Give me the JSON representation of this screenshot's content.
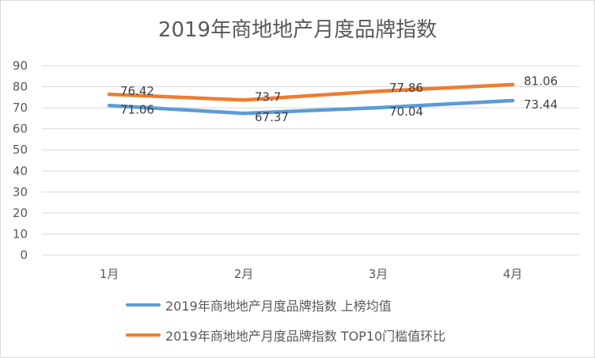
{
  "chart_data": {
    "type": "line",
    "title": "2019年商地地产月度品牌指数",
    "categories": [
      "1月",
      "2月",
      "3月",
      "4月"
    ],
    "ylim": [
      0,
      90
    ],
    "yticks": [
      0,
      10,
      20,
      30,
      40,
      50,
      60,
      70,
      80,
      90
    ],
    "grid": true,
    "legend_position": "bottom",
    "series": [
      {
        "name": "2019年商地地产月度品牌指数 上榜均值",
        "color": "#5b9bd5",
        "values": [
          71.06,
          67.37,
          70.04,
          73.44
        ]
      },
      {
        "name": "2019年商地地产月度品牌指数 TOP10门槛值环比",
        "color": "#ed7d31",
        "values": [
          76.42,
          73.7,
          77.86,
          81.06
        ]
      }
    ]
  }
}
